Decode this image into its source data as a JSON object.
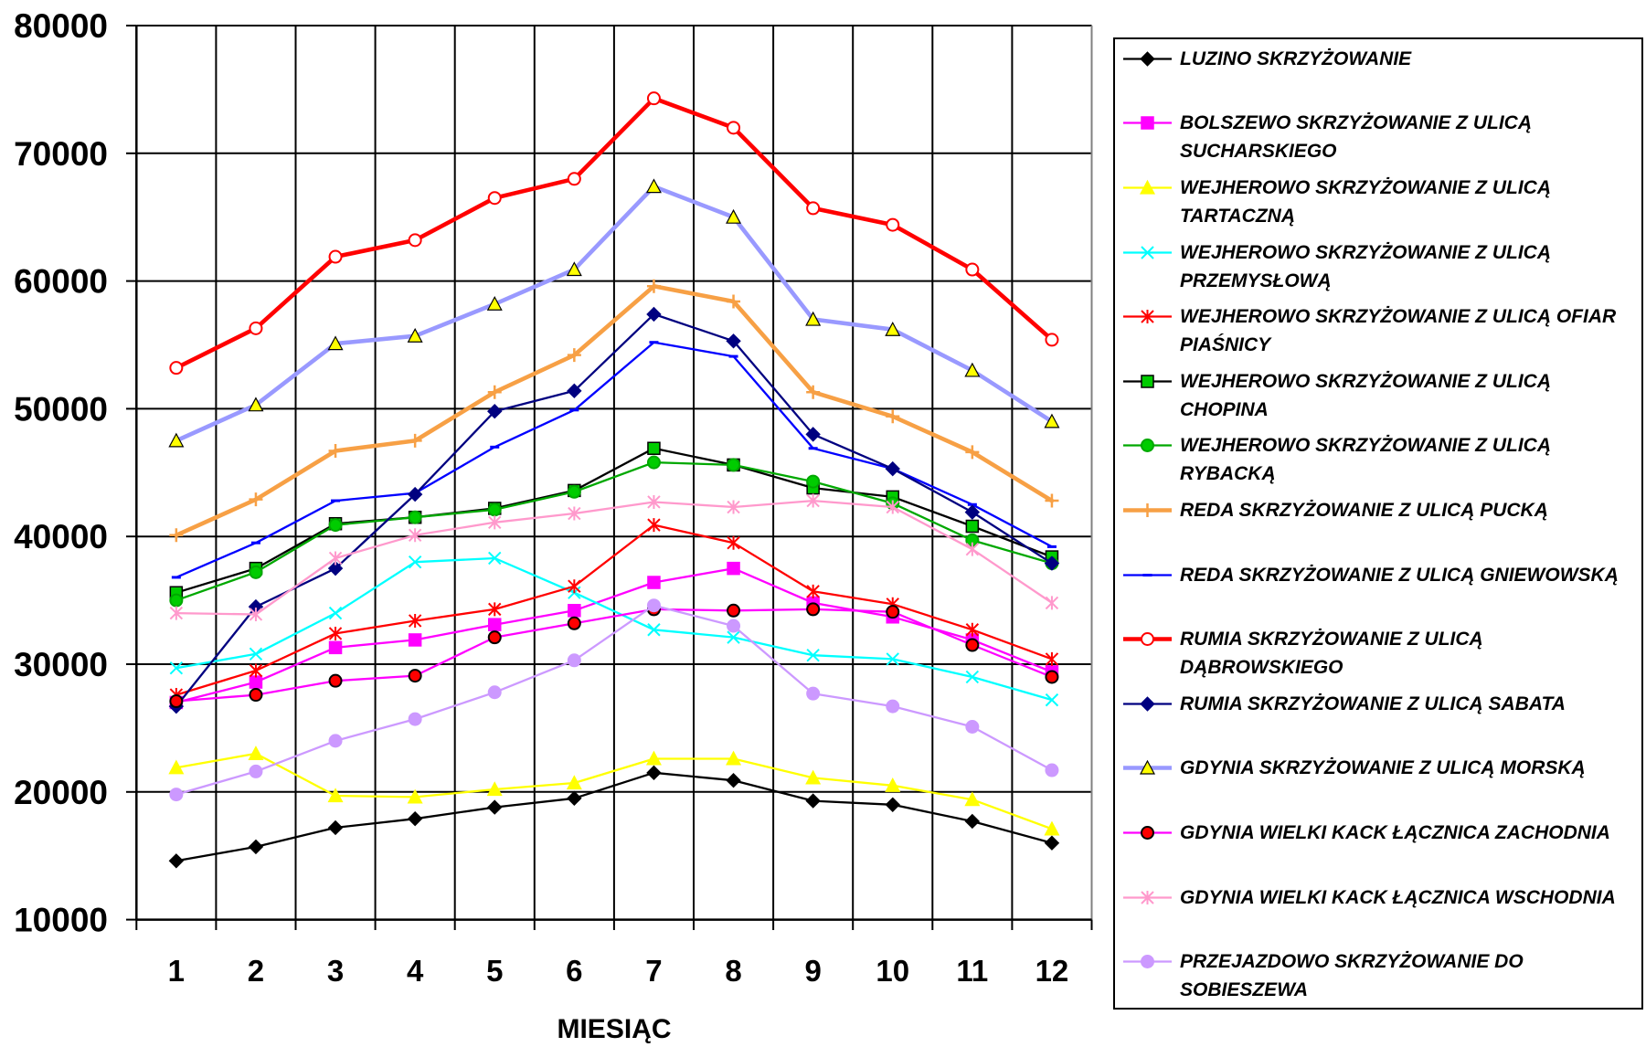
{
  "chart_data": {
    "type": "line",
    "categories": [
      1,
      2,
      3,
      4,
      5,
      6,
      7,
      8,
      9,
      10,
      11,
      12
    ],
    "xlabel": "MIESIĄC",
    "ylim": [
      10000,
      80000
    ],
    "y_ticks": [
      10000,
      20000,
      30000,
      40000,
      50000,
      60000,
      70000,
      80000
    ],
    "grid": true,
    "legend_position": "right",
    "series": [
      {
        "name": "LUZINO SKRZYŻOWANIE",
        "color": "#000000",
        "marker": "diamond",
        "marker_fill": "#000000",
        "marker_stroke": "#000000",
        "values": [
          14600,
          15700,
          17200,
          17900,
          18800,
          19500,
          21500,
          20900,
          19300,
          19000,
          17700,
          16000
        ]
      },
      {
        "name": "BOLSZEWO SKRZYŻOWANIE Z ULICĄ SUCHARSKIEGO",
        "color": "#FF00FF",
        "marker": "square",
        "marker_fill": "#FF00FF",
        "marker_stroke": "#FF00FF",
        "values": [
          27000,
          28600,
          31300,
          31900,
          33100,
          34200,
          36400,
          37500,
          34800,
          33700,
          31900,
          29400
        ]
      },
      {
        "name": "WEJHEROWO SKRZYŻOWANIE Z ULICĄ TARTACZNĄ",
        "color": "#FFFF00",
        "marker": "triangle",
        "marker_fill": "#FFFF00",
        "marker_stroke": "#FFFF00",
        "values": [
          21900,
          23000,
          19700,
          19600,
          20200,
          20700,
          22600,
          22600,
          21100,
          20500,
          19400,
          17100
        ]
      },
      {
        "name": "WEJHEROWO SKRZYŻOWANIE Z ULICĄ PRZEMYSŁOWĄ",
        "color": "#00FFFF",
        "marker": "x",
        "marker_fill": "#00FFFF",
        "marker_stroke": "#00FFFF",
        "values": [
          29700,
          30800,
          34000,
          38000,
          38300,
          35600,
          32700,
          32100,
          30700,
          30400,
          29000,
          27200
        ]
      },
      {
        "name": "WEJHEROWO SKRZYŻOWANIE Z ULICĄ OFIAR PIAŚNICY",
        "color": "#FF0000",
        "marker": "star",
        "marker_fill": "#FF0000",
        "marker_stroke": "#FF0000",
        "values": [
          27600,
          29500,
          32400,
          33400,
          34300,
          36100,
          40900,
          39500,
          35700,
          34700,
          32700,
          30400
        ]
      },
      {
        "name": "WEJHEROWO SKRZYŻOWANIE Z ULICĄ CHOPINA",
        "color": "#000000",
        "marker": "square",
        "marker_fill": "#00CC00",
        "marker_stroke": "#000000",
        "values": [
          35600,
          37500,
          41000,
          41500,
          42200,
          43600,
          46900,
          45600,
          43800,
          43100,
          40800,
          38400
        ]
      },
      {
        "name": "WEJHEROWO SKRZYŻOWANIE Z ULICĄ RYBACKĄ",
        "color": "#00A800",
        "marker": "circle",
        "marker_fill": "#00CC00",
        "marker_stroke": "#00A800",
        "values": [
          35000,
          37200,
          40900,
          41500,
          42100,
          43500,
          45800,
          45600,
          44300,
          42600,
          39700,
          37900
        ]
      },
      {
        "name": "REDA SKRZYŻOWANIE Z ULICĄ PUCKĄ",
        "color": "#F7A045",
        "marker": "plus",
        "marker_fill": "#F7A045",
        "marker_stroke": "#F7A045",
        "values": [
          40100,
          42900,
          46700,
          47500,
          51300,
          54200,
          59600,
          58400,
          51300,
          49400,
          46600,
          42800
        ]
      },
      {
        "name": "REDA SKRZYŻOWANIE Z ULICĄ GNIEWOWSKĄ",
        "color": "#0000FF",
        "marker": "dash",
        "marker_fill": "#0000FF",
        "marker_stroke": "#0000FF",
        "values": [
          36800,
          39500,
          42800,
          43400,
          47000,
          49900,
          55200,
          54100,
          46900,
          45300,
          42500,
          39200
        ]
      },
      {
        "name": "RUMIA SKRZYŻOWANIE Z ULICĄ DĄBROWSKIEGO",
        "color": "#FF0000",
        "marker": "circle",
        "marker_fill": "#FFFFFF",
        "marker_stroke": "#FF0000",
        "values": [
          53200,
          56300,
          61900,
          63200,
          66500,
          68000,
          74300,
          72000,
          65700,
          64400,
          60900,
          55400
        ]
      },
      {
        "name": "RUMIA SKRZYŻOWANIE Z ULICĄ SABATA",
        "color": "#000080",
        "marker": "diamond",
        "marker_fill": "#000080",
        "marker_stroke": "#000080",
        "values": [
          26700,
          34500,
          37500,
          43300,
          49800,
          51400,
          57400,
          55300,
          48000,
          45300,
          41900,
          37900
        ]
      },
      {
        "name": "GDYNIA SKRZYŻOWANIE Z ULICĄ MORSKĄ",
        "color": "#9999FF",
        "marker": "triangle",
        "marker_fill": "#FFFF00",
        "marker_stroke": "#000000",
        "values": [
          47500,
          50300,
          55100,
          55700,
          58200,
          60900,
          67400,
          65000,
          57000,
          56200,
          53000,
          49000
        ]
      },
      {
        "name": "GDYNIA WIELKI KACK ŁĄCZNICA ZACHODNIA",
        "color": "#FF00FF",
        "marker": "circle",
        "marker_fill": "#FF0000",
        "marker_stroke": "#000000",
        "values": [
          27100,
          27600,
          28700,
          29100,
          32100,
          33200,
          34300,
          34200,
          34300,
          34100,
          31500,
          29000
        ]
      },
      {
        "name": "GDYNIA WIELKI KACK ŁĄCZNICA WSCHODNIA",
        "color": "#FF99CC",
        "marker": "star",
        "marker_fill": "#FF99CC",
        "marker_stroke": "#FF99CC",
        "values": [
          34000,
          33900,
          38300,
          40100,
          41100,
          41800,
          42700,
          42300,
          42800,
          42300,
          39000,
          34800
        ]
      },
      {
        "name": "PRZEJAZDOWO SKRZYŻOWANIE DO SOBIESZEWA",
        "color": "#CC99FF",
        "marker": "circle",
        "marker_fill": "#CC99FF",
        "marker_stroke": "#CC99FF",
        "values": [
          19800,
          21600,
          24000,
          25700,
          27800,
          30300,
          34600,
          33000,
          27700,
          26700,
          25100,
          21700
        ]
      }
    ]
  }
}
